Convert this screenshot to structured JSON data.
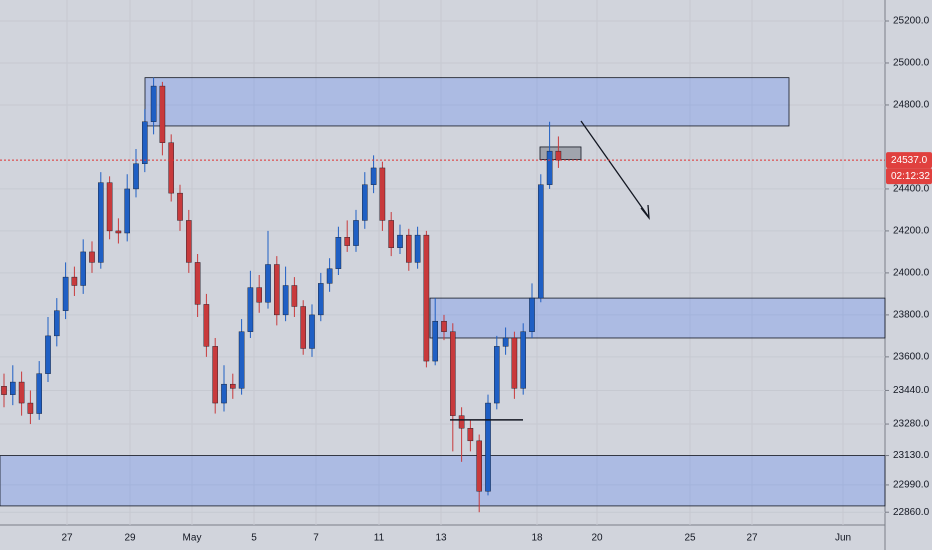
{
  "chart_data": {
    "type": "candlestick",
    "up_color": "#1f5fc4",
    "down_color": "#c83a3c",
    "open": [
      23460,
      23420,
      23480,
      23380,
      23330,
      23520,
      23700,
      23820,
      23980,
      23940,
      24100,
      24050,
      24430,
      24200,
      24190,
      24400,
      24520,
      24720,
      24890,
      24620,
      24380,
      24250,
      24050,
      23850,
      23650,
      23380,
      23470,
      23450,
      23720,
      23930,
      23860,
      24040,
      23800,
      23940,
      23840,
      23640,
      23800,
      23950,
      24020,
      24170,
      24130,
      24250,
      24420,
      24500,
      24250,
      24120,
      24180,
      24050,
      24180,
      23580,
      23770,
      23720,
      23320,
      23260,
      23200,
      22960,
      23380,
      23650,
      23690,
      23450,
      23720,
      23880,
      24420,
      24580
    ],
    "high": [
      23520,
      23560,
      23530,
      23440,
      23580,
      23790,
      23880,
      24050,
      24030,
      24160,
      24150,
      24480,
      24460,
      24260,
      24470,
      24590,
      24780,
      24930,
      24910,
      24660,
      24420,
      24300,
      24090,
      23900,
      23690,
      23560,
      23520,
      23780,
      24010,
      23990,
      24200,
      24080,
      24030,
      23980,
      23870,
      23850,
      24000,
      24070,
      24220,
      24250,
      24300,
      24480,
      24560,
      24530,
      24290,
      24230,
      24210,
      24220,
      24200,
      23880,
      23800,
      23760,
      23360,
      23300,
      23230,
      23420,
      23700,
      23740,
      23720,
      23760,
      23950,
      24470,
      24720,
      24650
    ],
    "low": [
      23360,
      23370,
      23320,
      23280,
      23300,
      23480,
      23650,
      23780,
      23890,
      23900,
      24000,
      24020,
      24160,
      24140,
      24150,
      24360,
      24480,
      24660,
      24560,
      24340,
      24200,
      24000,
      23790,
      23600,
      23330,
      23340,
      23400,
      23420,
      23690,
      23810,
      23830,
      23750,
      23770,
      23790,
      23610,
      23600,
      23770,
      23910,
      23990,
      24100,
      24100,
      24210,
      24380,
      24200,
      24080,
      24090,
      24010,
      24020,
      23550,
      23560,
      23680,
      23150,
      23100,
      23150,
      22860,
      22940,
      23350,
      23610,
      23400,
      23420,
      23690,
      23860,
      24400,
      24500
    ],
    "close": [
      23420,
      23480,
      23380,
      23330,
      23520,
      23700,
      23820,
      23980,
      23940,
      24100,
      24050,
      24430,
      24200,
      24190,
      24400,
      24520,
      24720,
      24890,
      24620,
      24380,
      24250,
      24050,
      23850,
      23650,
      23380,
      23470,
      23450,
      23720,
      23930,
      23860,
      24040,
      23800,
      23940,
      23840,
      23640,
      23800,
      23950,
      24020,
      24170,
      24130,
      24250,
      24420,
      24500,
      24250,
      24120,
      24180,
      24050,
      24180,
      23580,
      23770,
      23720,
      23320,
      23260,
      23200,
      22960,
      23380,
      23650,
      23690,
      23450,
      23720,
      23880,
      24420,
      24580,
      24537
    ],
    "ylim": [
      22680,
      25300
    ],
    "yticks": [
      {
        "value": 25200,
        "label": "25200.0"
      },
      {
        "value": 25000,
        "label": "25000.0"
      },
      {
        "value": 24800,
        "label": "24800.0"
      },
      {
        "value": 24400,
        "label": "24400.0"
      },
      {
        "value": 24200,
        "label": "24200.0"
      },
      {
        "value": 24000,
        "label": "24000.0"
      },
      {
        "value": 23800,
        "label": "23800.0"
      },
      {
        "value": 23600,
        "label": "23600.0"
      },
      {
        "value": 23440,
        "label": "23440.0"
      },
      {
        "value": 23280,
        "label": "23280.0"
      },
      {
        "value": 23130,
        "label": "23130.0"
      },
      {
        "value": 22990,
        "label": "22990.0"
      },
      {
        "value": 22860,
        "label": "22860.0"
      }
    ],
    "xtick_labels": [
      "27",
      "29",
      "May",
      "5",
      "7",
      "11",
      "13",
      "18",
      "20",
      "25",
      "27",
      "Jun"
    ],
    "grid": true,
    "zones": [
      {
        "low": 24700,
        "high": 24930
      },
      {
        "low": 23690,
        "high": 23880
      },
      {
        "low": 22890,
        "high": 23130
      },
      {
        "low": 24540,
        "high": 24600
      }
    ],
    "level": 23300,
    "last_price": {
      "value": 24537,
      "label": "24537.0"
    },
    "countdown": "02:12:32"
  }
}
